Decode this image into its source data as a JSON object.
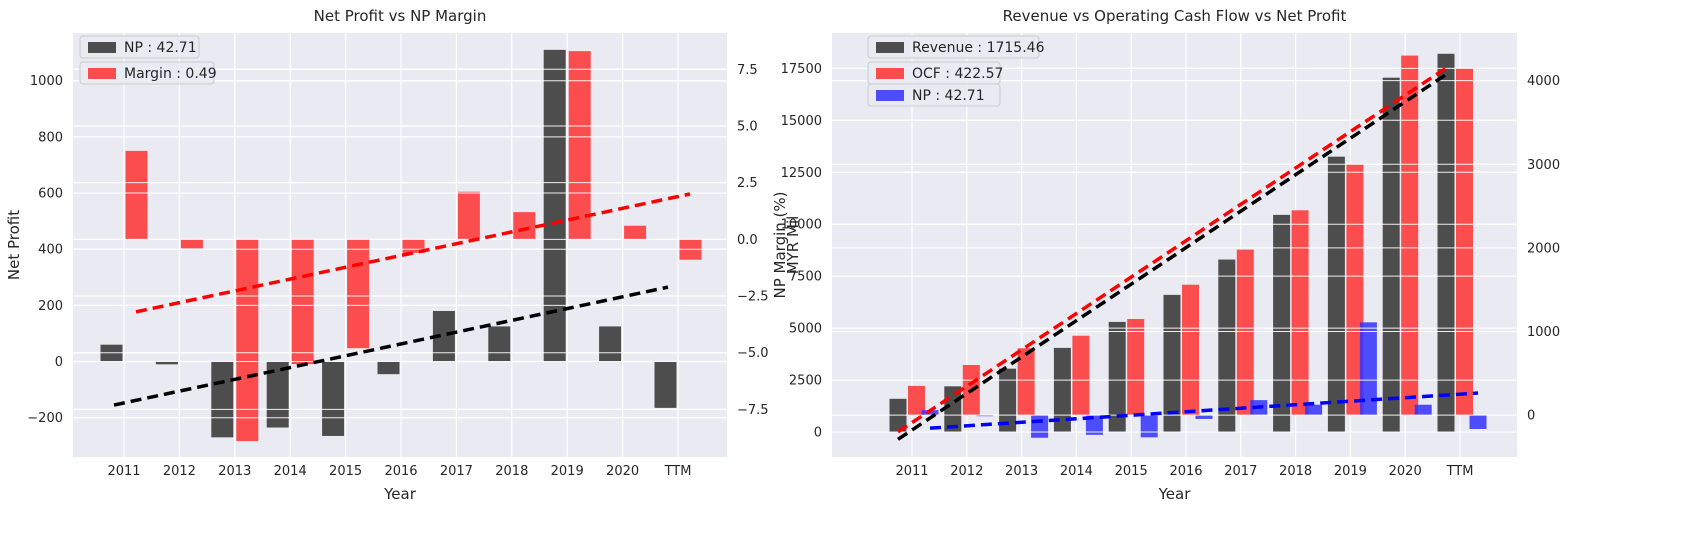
{
  "chart_data": [
    {
      "type": "bar",
      "title": "Net Profit vs NP Margin",
      "xlabel": "Year",
      "ylabel": "Net Profit",
      "y2label": "NP Margin (%)",
      "categories": [
        "2011",
        "2012",
        "2013",
        "2014",
        "2015",
        "2016",
        "2017",
        "2018",
        "2019",
        "2020",
        "TTM"
      ],
      "ylim": [
        -340,
        1170
      ],
      "y2lim": [
        -9.6,
        9.1
      ],
      "yticks": [
        -200,
        0,
        200,
        400,
        600,
        800,
        1000
      ],
      "y2ticks": [
        -7.5,
        -5.0,
        -2.5,
        0.0,
        2.5,
        5.0,
        7.5
      ],
      "y2tick_labels": [
        "−7.5",
        "−5.0",
        "−2.5",
        "0.0",
        "2.5",
        "5.0",
        "7.5"
      ],
      "grid": true,
      "legend_position": "top-left",
      "series": [
        {
          "name": "NP : 42.71",
          "axis": "left",
          "color": "#333333",
          "values": [
            60,
            -10,
            -270,
            -235,
            -265,
            -45,
            180,
            125,
            1110,
            125,
            -165
          ],
          "trend": [
            -155,
            265
          ]
        },
        {
          "name": "Margin : 0.49",
          "axis": "right",
          "color": "#ff3333",
          "values": [
            3.9,
            -0.4,
            -8.9,
            -5.5,
            -4.8,
            -0.6,
            2.1,
            1.2,
            8.3,
            0.6,
            -0.9
          ],
          "trend": [
            -3.2,
            2.0
          ]
        }
      ]
    },
    {
      "type": "bar",
      "title": "Revenue vs Operating Cash Flow vs Net Profit",
      "xlabel": "Year",
      "ylabel": "MYR Mil",
      "categories": [
        "2011",
        "2012",
        "2013",
        "2014",
        "2015",
        "2016",
        "2017",
        "2018",
        "2019",
        "2020",
        "TTM"
      ],
      "ylim": [
        -1200,
        19200
      ],
      "y2lim": [
        -500,
        4570
      ],
      "yticks": [
        0,
        2500,
        5000,
        7500,
        10000,
        12500,
        15000,
        17500
      ],
      "y2ticks": [
        0,
        1000,
        2000,
        3000,
        4000
      ],
      "grid": true,
      "legend_position": "top-left",
      "series": [
        {
          "name": "Revenue : 1715.46",
          "axis": "left",
          "color": "#333333",
          "values": [
            1600,
            2200,
            3050,
            4050,
            5300,
            6600,
            8300,
            10450,
            13250,
            17050,
            18200
          ],
          "trend": [
            -350,
            17200
          ]
        },
        {
          "name": "OCF : 422.57",
          "axis": "right",
          "color": "#ff3333",
          "values": [
            350,
            600,
            800,
            950,
            1150,
            1560,
            1980,
            2450,
            3000,
            4300,
            4150
          ],
          "trend": [
            -200,
            4150
          ]
        },
        {
          "name": "NP : 42.71",
          "axis": "right",
          "color": "#3333ff",
          "values": [
            60,
            -10,
            -270,
            -235,
            -265,
            -45,
            180,
            125,
            1110,
            125,
            -165
          ],
          "trend": [
            -155,
            265
          ]
        }
      ]
    }
  ]
}
